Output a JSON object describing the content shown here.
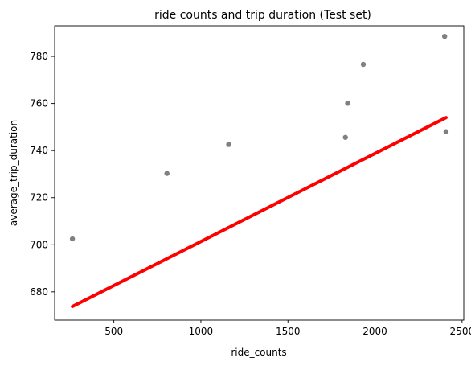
{
  "chart_data": {
    "type": "scatter",
    "title": "ride counts and trip duration (Test set)",
    "xlabel": "ride_counts",
    "ylabel": "average_trip_duration",
    "xlim": [
      160,
      2510
    ],
    "ylim": [
      668,
      793
    ],
    "xticks": [
      500,
      1000,
      1500,
      2000,
      2500
    ],
    "yticks": [
      680,
      700,
      720,
      740,
      760,
      780
    ],
    "grid": false,
    "series": [
      {
        "type": "scatter",
        "color": "#808080",
        "points": [
          {
            "x": 262,
            "y": 702.5
          },
          {
            "x": 805,
            "y": 730.3
          },
          {
            "x": 1160,
            "y": 742.6
          },
          {
            "x": 1830,
            "y": 745.6
          },
          {
            "x": 1843,
            "y": 760.1
          },
          {
            "x": 1933,
            "y": 776.6
          },
          {
            "x": 2400,
            "y": 788.5
          },
          {
            "x": 2408,
            "y": 748.0
          }
        ]
      },
      {
        "type": "line",
        "color": "#ff0000",
        "points": [
          {
            "x": 262,
            "y": 673.8
          },
          {
            "x": 2408,
            "y": 754.0
          }
        ]
      }
    ]
  }
}
